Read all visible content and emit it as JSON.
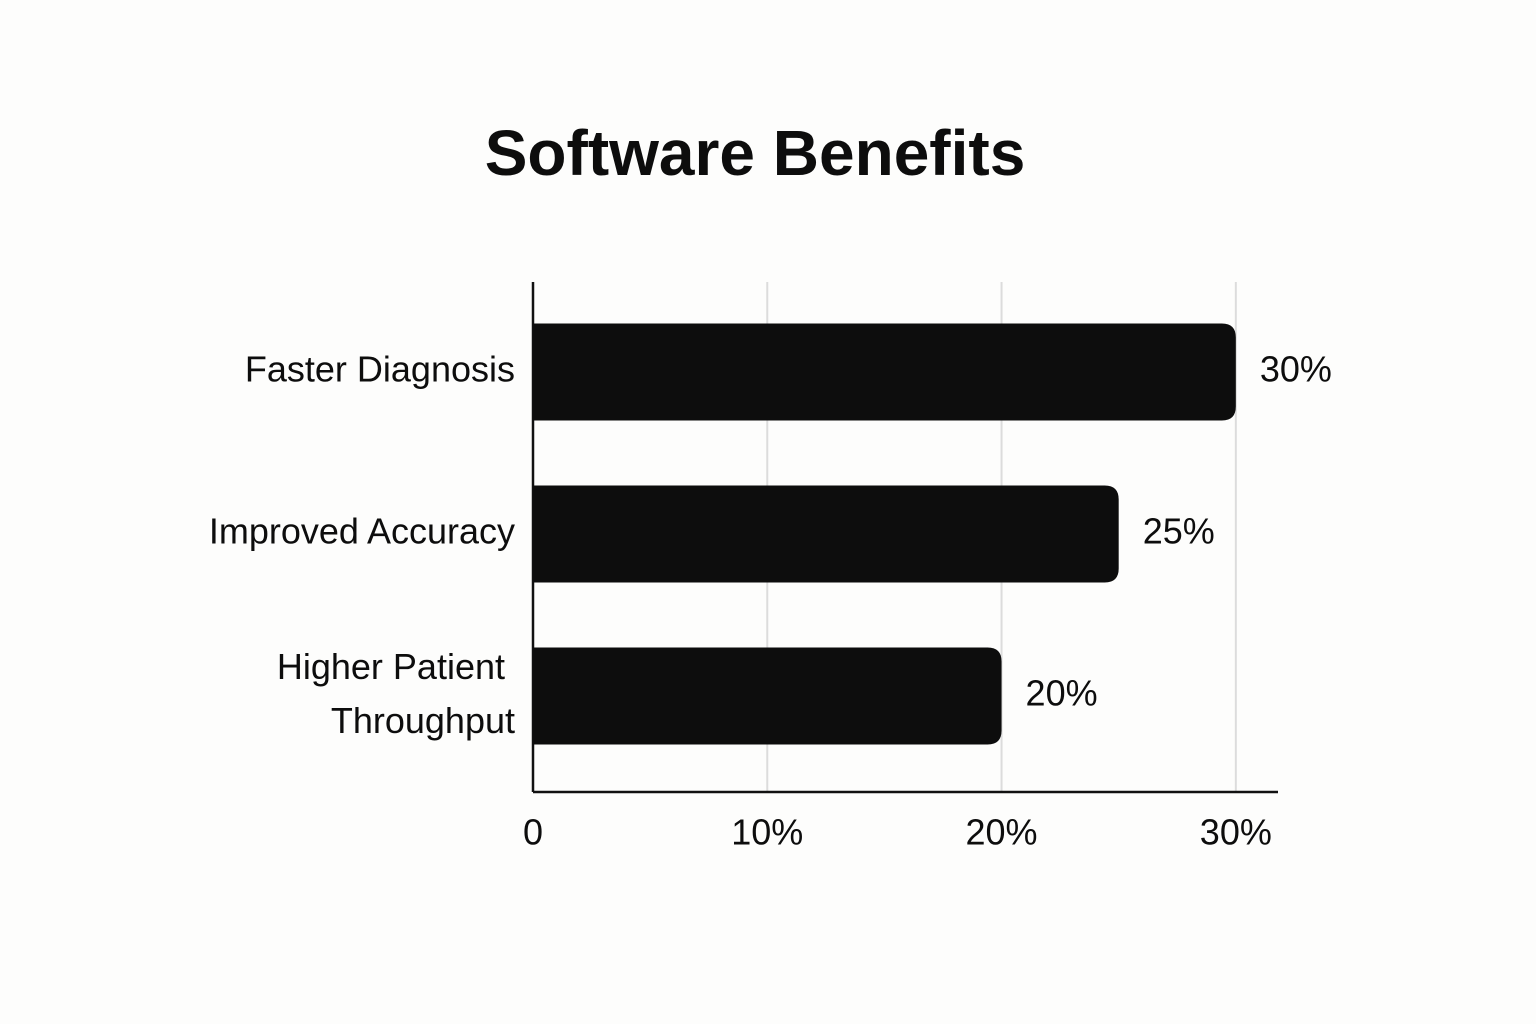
{
  "chart_data": {
    "type": "bar",
    "orientation": "horizontal",
    "title": "Software Benefits",
    "categories": [
      "Faster Diagnosis",
      "Improved Accuracy",
      "Higher Patient Throughput"
    ],
    "values": [
      30,
      25,
      20
    ],
    "value_labels": [
      "30%",
      "25%",
      "20%"
    ],
    "color": "#0d0d0d",
    "xlim": [
      0,
      31.8
    ],
    "xticks": [
      0,
      {
        "value": 10,
        "label": "10%"
      },
      {
        "value": 20,
        "label": "20%"
      },
      {
        "value": 30,
        "label": "30%"
      }
    ],
    "grid": true
  }
}
